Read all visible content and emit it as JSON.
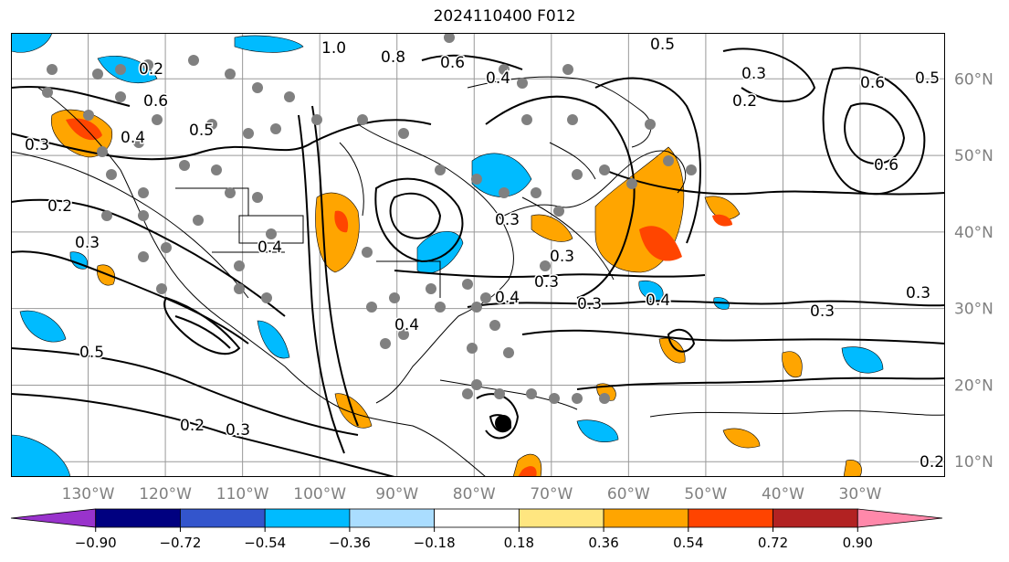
{
  "title": "2024110400 F012",
  "lat_labels": [
    {
      "value": 60,
      "text": "60°N"
    },
    {
      "value": 50,
      "text": "50°N"
    },
    {
      "value": 40,
      "text": "40°N"
    },
    {
      "value": 30,
      "text": "30°N"
    },
    {
      "value": 20,
      "text": "20°N"
    },
    {
      "value": 10,
      "text": "10°N"
    }
  ],
  "lon_labels": [
    {
      "value": -130,
      "text": "130°W"
    },
    {
      "value": -120,
      "text": "120°W"
    },
    {
      "value": -110,
      "text": "110°W"
    },
    {
      "value": -100,
      "text": "100°W"
    },
    {
      "value": -90,
      "text": "90°W"
    },
    {
      "value": -80,
      "text": "80°W"
    },
    {
      "value": -70,
      "text": "70°W"
    },
    {
      "value": -60,
      "text": "60°W"
    },
    {
      "value": -50,
      "text": "50°W"
    },
    {
      "value": -40,
      "text": "40°W"
    },
    {
      "value": -30,
      "text": "30°W"
    }
  ],
  "map_extent": {
    "lon_min": -140,
    "lon_max": -19,
    "lat_min": 8,
    "lat_max": 66
  },
  "contour_labels": [
    "1.0",
    "0.8",
    "0.6",
    "0.5",
    "0.4",
    "0.3",
    "0.2",
    "0.6",
    "0.5",
    "0.4",
    "0.3",
    "0.2",
    "0.3",
    "0.4",
    "0.3",
    "0.5",
    "0.2",
    "0.3",
    "0.4",
    "0.3",
    "0.3",
    "0.3",
    "0.4",
    "0.2",
    "0.5",
    "0.6",
    "0.3",
    "0.6",
    "0.3",
    "0.4",
    "0.2"
  ],
  "colorbar": {
    "ticks": [
      "−0.90",
      "−0.72",
      "−0.54",
      "−0.36",
      "−0.18",
      "0.18",
      "0.36",
      "0.54",
      "0.72",
      "0.90"
    ],
    "colors": [
      "#9933cc",
      "#000080",
      "#3355cc",
      "#00bbff",
      "#aaddff",
      "#ffffff",
      "#ffe680",
      "#ffa500",
      "#ff4400",
      "#b22222",
      "#ff88aa"
    ]
  },
  "colors": {
    "positive_fill": "#ffa500",
    "strong_positive_fill": "#ff4500",
    "negative_fill": "#00aaee",
    "station_dot": "#808080",
    "storm_marker": "#000000"
  }
}
